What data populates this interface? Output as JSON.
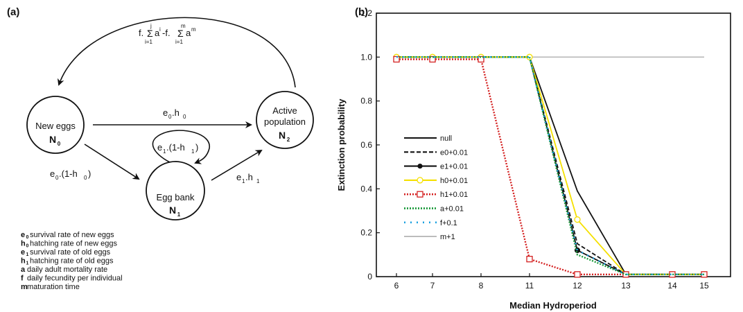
{
  "diagram": {
    "panel_label": "(a)",
    "feedback_formula": {
      "lead": "f.",
      "sum1_top": "j",
      "sum1_sym": "Σ",
      "sum1_bottom": "i=1",
      "sum1_body": "a",
      "sum1_exp": "i",
      "minus": "-f.",
      "sum2_top": "m",
      "sum2_sym": "Σ",
      "sum2_bottom": "i=1",
      "sum2_body": "a",
      "sum2_exp": "m"
    },
    "nodes": {
      "new_eggs": {
        "label": "New eggs",
        "symbol": "N",
        "sub": "0"
      },
      "active": {
        "label_line1": "Active",
        "label_line2": "population",
        "symbol": "N",
        "sub": "2"
      },
      "egg_bank": {
        "label": "Egg bank",
        "symbol": "N",
        "sub": "1"
      }
    },
    "edges": {
      "new_to_active": {
        "a": "e",
        "a_sub": "0",
        "dot": ".h",
        "b_sub": "0"
      },
      "new_to_bank": {
        "a": "e",
        "a_sub": "0",
        "mid": ".(1-h",
        "b_sub": "0",
        "end": ")"
      },
      "bank_loop": {
        "a": "e",
        "a_sub": "1",
        "mid": ".(1-h",
        "b_sub": "1",
        "end": ")"
      },
      "bank_to_active": {
        "a": "e",
        "a_sub": "1",
        "dot": ".h",
        "b_sub": "1"
      }
    },
    "legend": [
      {
        "sym": "e",
        "sub": "0",
        "text": "survival rate of new eggs"
      },
      {
        "sym": "h",
        "sub": "0",
        "text": "hatching rate of new eggs"
      },
      {
        "sym": "e",
        "sub": "1",
        "text": "survival rate of old eggs"
      },
      {
        "sym": "h",
        "sub": "1",
        "text": "hatching rate of old eggs"
      },
      {
        "sym": "a",
        "sub": "",
        "text": "daily adult mortality rate"
      },
      {
        "sym": "f",
        "sub": "",
        "text": "daily fecundity per individual"
      },
      {
        "sym": "m",
        "sub": "",
        "text": "maturation time"
      }
    ]
  },
  "chart_data": {
    "panel_label": "(b)",
    "type": "line",
    "xlabel": "Median Hydroperiod",
    "ylabel": "Extinction probability",
    "x": [
      6,
      7,
      8,
      11,
      12,
      13,
      14,
      15
    ],
    "x_tick_labels": [
      "6",
      "7",
      "8",
      "11",
      "12",
      "13",
      "14",
      "15"
    ],
    "ylim": [
      0,
      1.2
    ],
    "y_ticks": [
      0,
      0.2,
      0.4,
      0.6,
      0.8,
      1.0,
      1.2
    ],
    "y_tick_labels": [
      "0",
      "0.2",
      "0.4",
      "0.6",
      "0.8",
      "1.0",
      "1.2"
    ],
    "grid": false,
    "legend_position": "left",
    "series": [
      {
        "name": "null",
        "color": "#111111",
        "dash": "solid",
        "marker": "none",
        "values": [
          1.0,
          1.0,
          1.0,
          1.0,
          0.39,
          0.01,
          0.01,
          0.01
        ]
      },
      {
        "name": "e0+0.01",
        "color": "#111111",
        "dash": "dashed",
        "marker": "none",
        "values": [
          1.0,
          1.0,
          1.0,
          1.0,
          0.15,
          0.01,
          0.01,
          0.01
        ]
      },
      {
        "name": "e1+0.01",
        "color": "#111111",
        "dash": "solid",
        "marker": "circle-filled",
        "values": [
          1.0,
          1.0,
          1.0,
          1.0,
          0.12,
          0.01,
          0.01,
          0.01
        ]
      },
      {
        "name": "h0+0.01",
        "color": "#f5e000",
        "dash": "solid",
        "marker": "circle-open",
        "values": [
          1.0,
          1.0,
          1.0,
          1.0,
          0.26,
          0.01,
          0.01,
          0.01
        ]
      },
      {
        "name": "h1+0.01",
        "color": "#d42020",
        "dash": "dotted",
        "marker": "square-open",
        "values": [
          0.99,
          0.99,
          0.99,
          0.08,
          0.01,
          0.01,
          0.01,
          0.01
        ]
      },
      {
        "name": "a+0.01",
        "color": "#1a9a3a",
        "dash": "dotted",
        "marker": "none",
        "values": [
          1.0,
          1.0,
          1.0,
          1.0,
          0.1,
          0.01,
          0.01,
          0.01
        ]
      },
      {
        "name": "f+0.1",
        "color": "#1aa0e0",
        "dash": "sparse-dot",
        "marker": "none",
        "values": [
          1.0,
          1.0,
          1.0,
          1.0,
          0.12,
          0.01,
          0.01,
          0.01
        ]
      },
      {
        "name": "m+1",
        "color": "#b8b8b8",
        "dash": "solid",
        "marker": "none",
        "values": [
          1.0,
          1.0,
          1.0,
          1.0,
          1.0,
          1.0,
          1.0,
          1.0
        ]
      }
    ]
  }
}
